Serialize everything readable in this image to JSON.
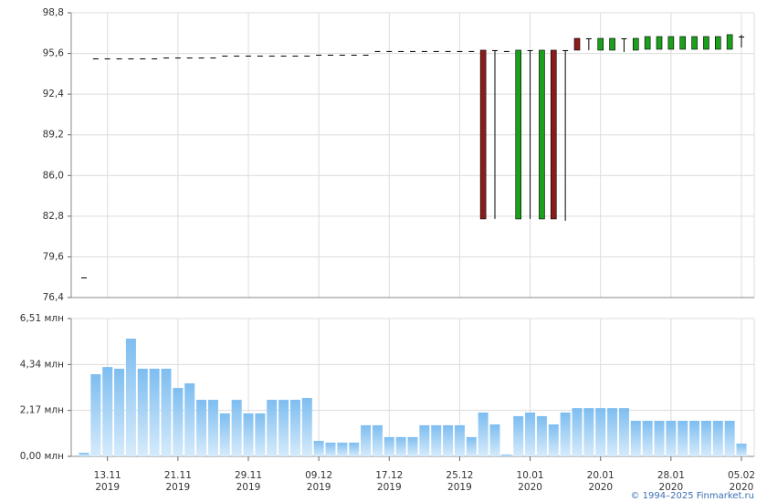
{
  "chart_data": [
    {
      "type": "candlestick",
      "open": [
        77.98,
        95.21,
        95.21,
        95.21,
        95.21,
        95.21,
        95.21,
        95.28,
        95.28,
        95.28,
        95.28,
        95.28,
        95.43,
        95.43,
        95.43,
        95.43,
        95.43,
        95.43,
        95.43,
        95.43,
        95.5,
        95.5,
        95.5,
        95.5,
        95.5,
        95.79,
        95.79,
        95.79,
        95.79,
        95.79,
        95.79,
        95.79,
        95.79,
        95.79,
        95.86,
        95.86,
        95.79,
        82.58,
        95.86,
        82.58,
        95.86,
        95.86,
        96.79,
        96.79,
        95.86,
        95.86,
        96.79,
        95.86,
        95.93,
        95.93,
        95.93,
        95.93,
        95.93,
        95.93,
        95.93,
        95.93,
        96.93
      ],
      "high": [
        77.98,
        95.21,
        95.21,
        95.21,
        95.21,
        95.21,
        95.21,
        95.28,
        95.28,
        95.28,
        95.28,
        95.28,
        95.43,
        95.43,
        95.43,
        95.43,
        95.43,
        95.43,
        95.43,
        95.43,
        95.5,
        95.5,
        95.5,
        95.5,
        95.5,
        95.79,
        95.79,
        95.79,
        95.79,
        95.79,
        95.79,
        95.79,
        95.79,
        95.79,
        95.86,
        95.86,
        95.79,
        95.86,
        95.86,
        95.86,
        95.86,
        95.86,
        96.79,
        96.79,
        96.79,
        96.79,
        96.79,
        96.79,
        96.93,
        96.93,
        96.93,
        96.93,
        96.93,
        96.93,
        96.93,
        97.08,
        97.08
      ],
      "low": [
        77.98,
        95.21,
        95.21,
        95.21,
        95.21,
        95.21,
        95.21,
        95.28,
        95.28,
        95.28,
        95.28,
        95.28,
        95.43,
        95.43,
        95.43,
        95.43,
        95.43,
        95.43,
        95.43,
        95.43,
        95.5,
        95.5,
        95.5,
        95.5,
        95.5,
        95.79,
        95.79,
        95.79,
        95.79,
        95.79,
        95.79,
        95.79,
        95.79,
        95.79,
        82.58,
        82.58,
        95.79,
        82.58,
        82.58,
        82.58,
        82.58,
        82.44,
        95.86,
        95.86,
        95.86,
        95.86,
        95.72,
        95.86,
        95.93,
        95.93,
        95.93,
        95.93,
        95.93,
        95.93,
        95.93,
        95.93,
        96.07
      ],
      "close": [
        77.98,
        95.21,
        95.21,
        95.21,
        95.21,
        95.21,
        95.21,
        95.28,
        95.28,
        95.28,
        95.28,
        95.28,
        95.43,
        95.43,
        95.43,
        95.43,
        95.43,
        95.43,
        95.43,
        95.43,
        95.5,
        95.5,
        95.5,
        95.5,
        95.5,
        95.79,
        95.79,
        95.79,
        95.79,
        95.79,
        95.79,
        95.79,
        95.79,
        95.79,
        82.58,
        95.86,
        95.79,
        95.86,
        95.86,
        95.86,
        82.58,
        95.86,
        95.86,
        96.79,
        96.79,
        96.79,
        96.79,
        96.79,
        96.93,
        96.93,
        96.93,
        96.93,
        96.93,
        96.93,
        96.93,
        97.08,
        96.93
      ],
      "up_color": "#1aa01a",
      "down_color": "#8b1c1c",
      "ylim": [
        76.4,
        98.8
      ],
      "yticks": [
        {
          "value": 76.4,
          "label": "76,4"
        },
        {
          "value": 79.6,
          "label": "79,6"
        },
        {
          "value": 82.8,
          "label": "82,8"
        },
        {
          "value": 86.0,
          "label": "86,0"
        },
        {
          "value": 89.2,
          "label": "89,2"
        },
        {
          "value": 92.4,
          "label": "92,4"
        },
        {
          "value": 95.6,
          "label": "95,6"
        },
        {
          "value": 98.8,
          "label": "98,8"
        }
      ],
      "grid": true
    },
    {
      "type": "bar",
      "categories": [
        null,
        null,
        "13.11",
        null,
        null,
        null,
        null,
        null,
        "21.11",
        null,
        null,
        null,
        null,
        null,
        "29.11",
        null,
        null,
        null,
        null,
        null,
        "09.12",
        null,
        null,
        null,
        null,
        null,
        "17.12",
        null,
        null,
        null,
        null,
        null,
        "25.12",
        null,
        null,
        null,
        null,
        null,
        "10.01",
        null,
        null,
        null,
        null,
        null,
        "20.01",
        null,
        null,
        null,
        null,
        null,
        "28.01",
        null,
        null,
        null,
        null,
        null,
        "05.02"
      ],
      "category_years": [
        null,
        null,
        "2019",
        null,
        null,
        null,
        null,
        null,
        "2019",
        null,
        null,
        null,
        null,
        null,
        "2019",
        null,
        null,
        null,
        null,
        null,
        "2019",
        null,
        null,
        null,
        null,
        null,
        "2019",
        null,
        null,
        null,
        null,
        null,
        "2019",
        null,
        null,
        null,
        null,
        null,
        "2020",
        null,
        null,
        null,
        null,
        null,
        "2020",
        null,
        null,
        null,
        null,
        null,
        "2020",
        null,
        null,
        null,
        null,
        null,
        "2020"
      ],
      "values": [
        0.17,
        3.88,
        4.22,
        4.14,
        5.56,
        4.14,
        4.14,
        4.14,
        3.23,
        3.45,
        2.67,
        2.67,
        2.03,
        2.67,
        2.03,
        2.03,
        2.67,
        2.67,
        2.67,
        2.76,
        0.73,
        0.65,
        0.65,
        0.65,
        1.47,
        1.47,
        0.91,
        0.91,
        0.91,
        1.47,
        1.47,
        1.47,
        1.47,
        0.91,
        2.07,
        1.51,
        0.09,
        1.9,
        2.07,
        1.9,
        1.51,
        2.07,
        2.28,
        2.28,
        2.28,
        2.28,
        2.28,
        1.68,
        1.68,
        1.68,
        1.68,
        1.68,
        1.68,
        1.68,
        1.68,
        1.68,
        0.6
      ],
      "color": "#7dbdf0",
      "ylim": [
        0,
        6.51
      ],
      "yticks": [
        {
          "value": 0,
          "label": "0,00 млн"
        },
        {
          "value": 2.17,
          "label": "2,17 млн"
        },
        {
          "value": 4.34,
          "label": "4,34 млн"
        },
        {
          "value": 6.51,
          "label": "6,51 млн"
        }
      ],
      "grid": true
    }
  ],
  "source": "© 1994–2025 Finmarket.ru"
}
